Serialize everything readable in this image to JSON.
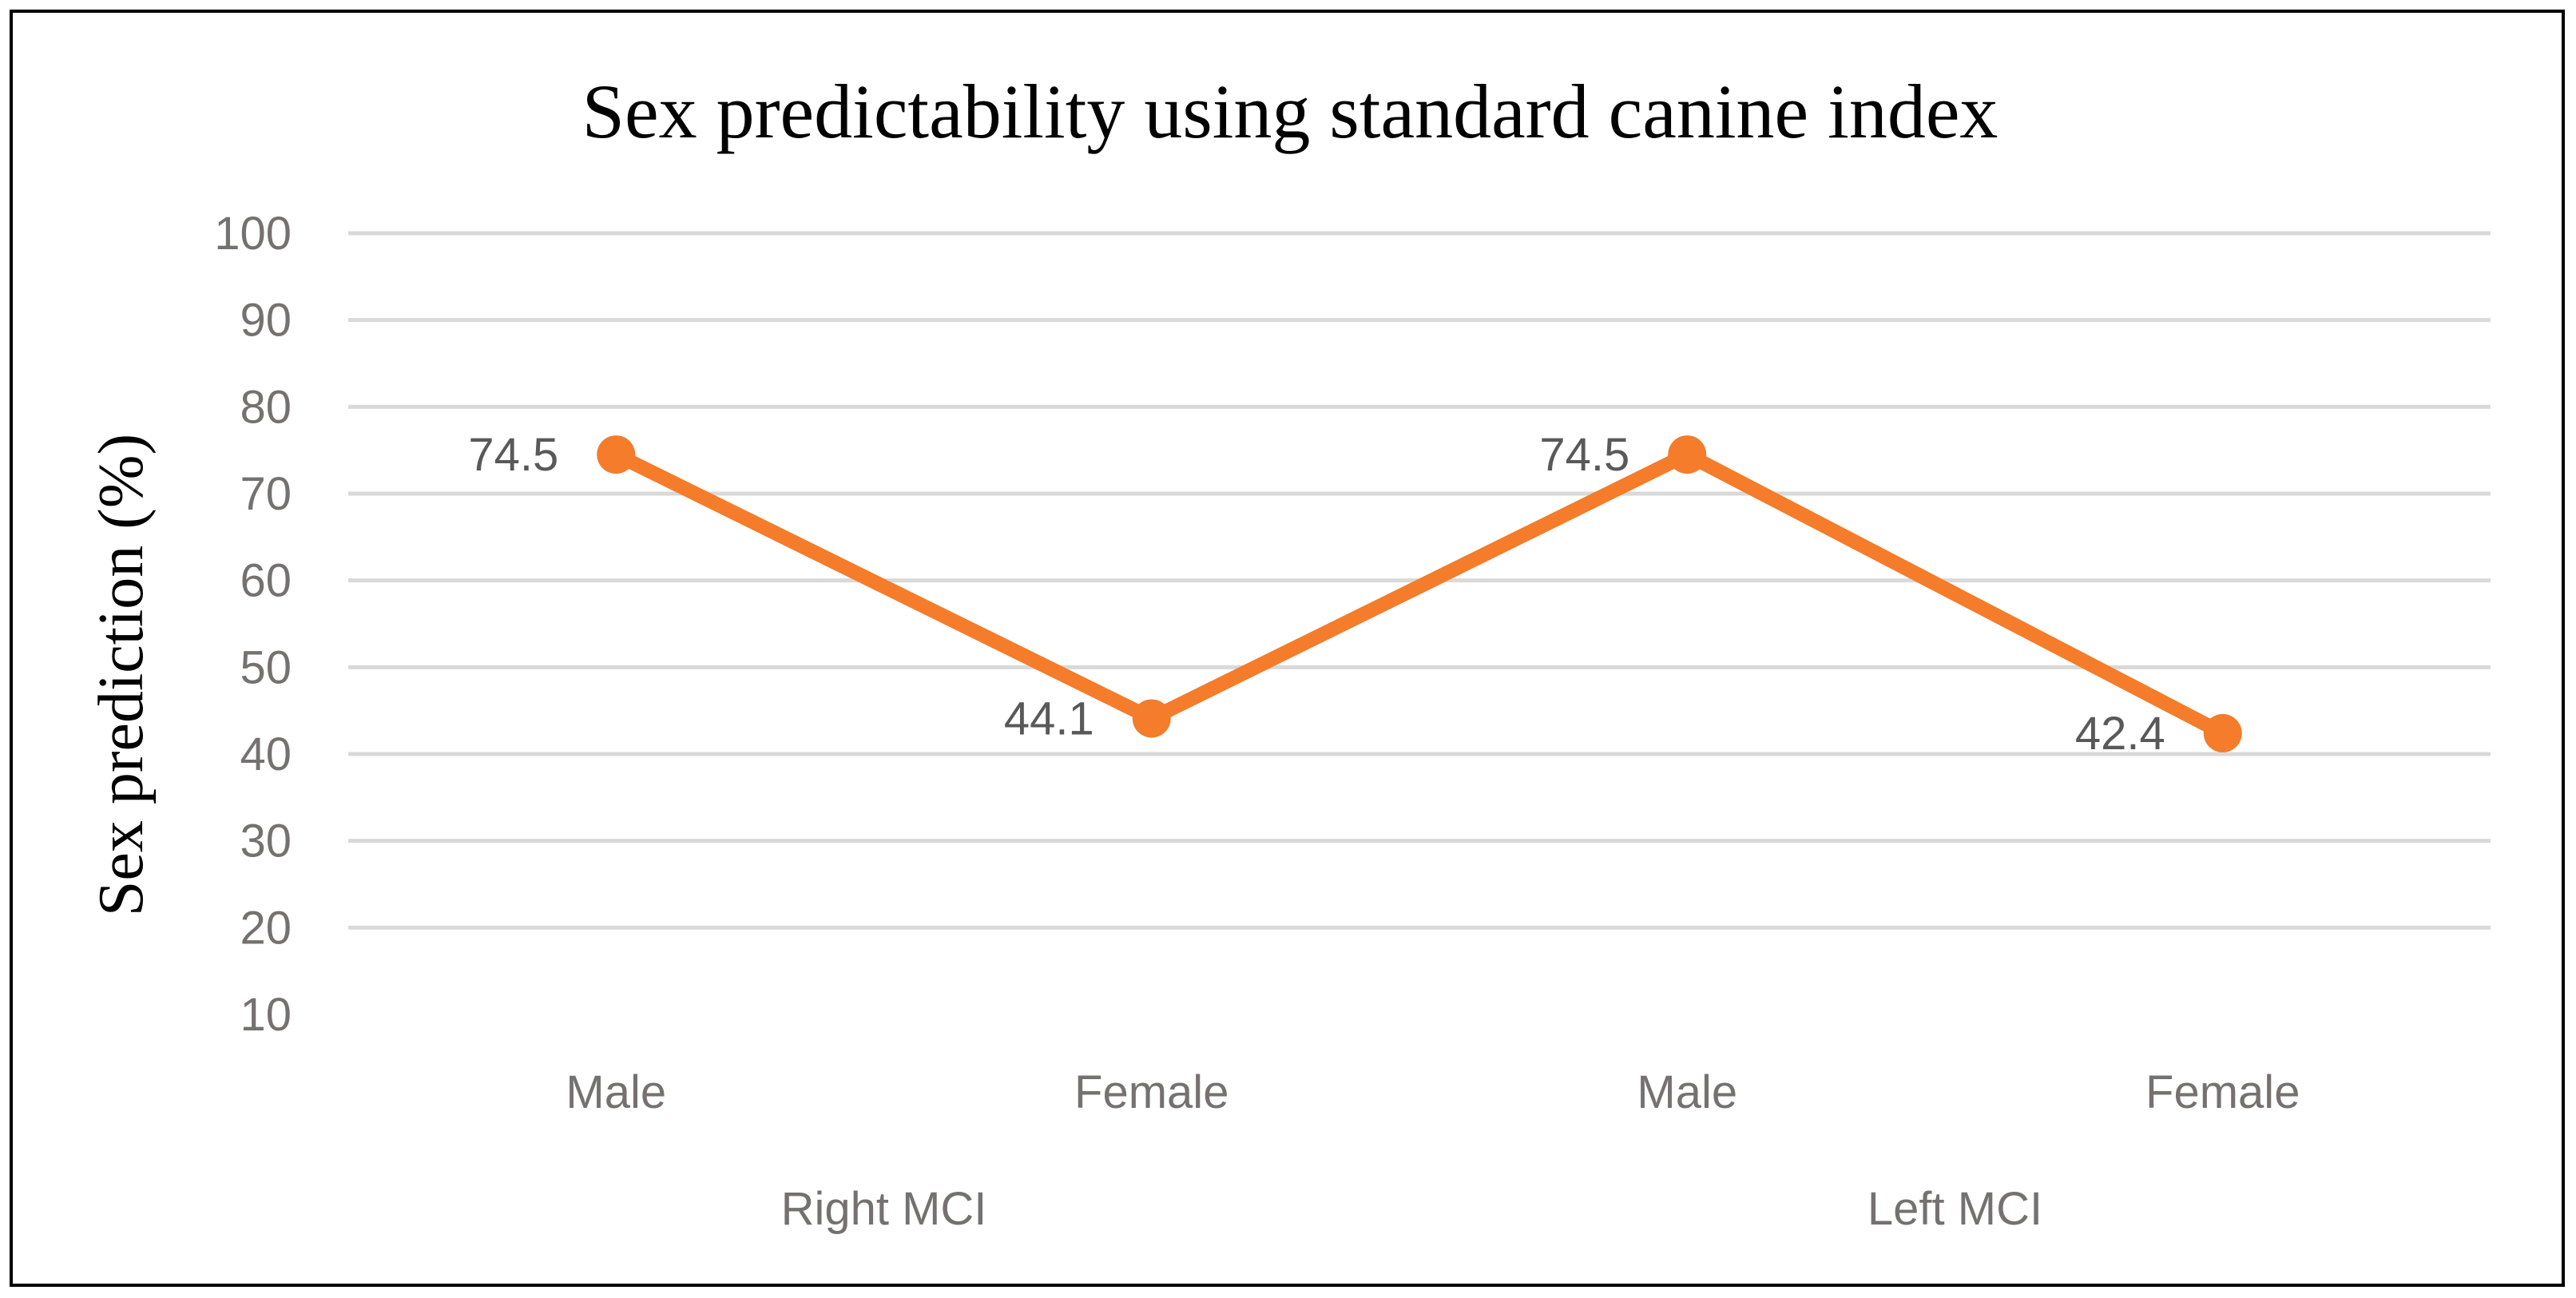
{
  "chart_data": {
    "type": "line",
    "title": "Sex predictability using standard canine index",
    "ylabel": "Sex prediction (%)",
    "xlabel": "",
    "ylim": [
      10,
      100
    ],
    "yticks": [
      10,
      20,
      30,
      40,
      50,
      60,
      70,
      80,
      90,
      100
    ],
    "categories": [
      "Male",
      "Female",
      "Male",
      "Female"
    ],
    "groups": [
      {
        "label": "Right MCI",
        "categories": [
          0,
          1
        ]
      },
      {
        "label": "Left MCI",
        "categories": [
          2,
          3
        ]
      }
    ],
    "series": [
      {
        "name": "Sex prediction",
        "values": [
          74.5,
          44.1,
          74.5,
          42.4
        ],
        "data_labels": [
          "74.5",
          "44.1",
          "74.5",
          "42.4"
        ],
        "color": "#F47C2A"
      }
    ],
    "grid": true,
    "legend": "none"
  },
  "colors": {
    "line": "#F47C2A",
    "grid": "#D9D9D9",
    "axis_text": "#767171",
    "label_text": "#595959",
    "frame": "#000000"
  }
}
